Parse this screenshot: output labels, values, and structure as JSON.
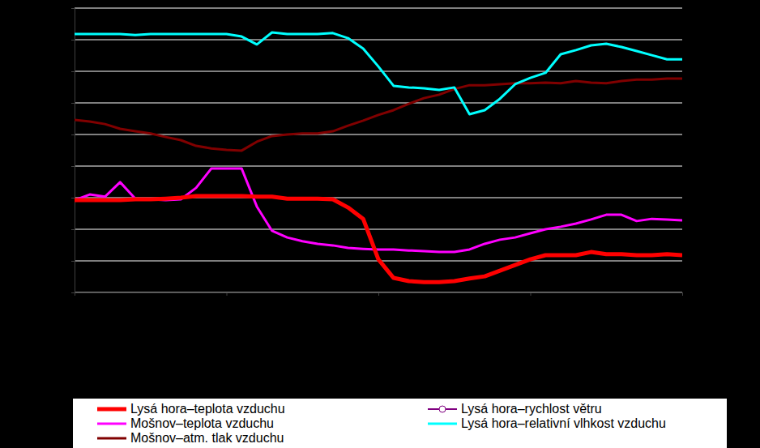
{
  "chart_data": {
    "type": "line",
    "x": [
      0,
      1,
      2,
      3,
      4,
      5,
      6,
      7,
      8,
      9,
      10,
      11,
      12,
      13,
      14,
      15,
      16,
      17,
      18,
      19,
      20,
      21,
      22,
      23,
      24,
      25,
      26,
      27,
      28,
      29,
      30,
      31,
      32,
      33,
      34,
      35,
      36,
      37,
      38,
      39,
      40
    ],
    "xlim": [
      0,
      40
    ],
    "xticks": [
      0,
      10,
      20,
      30,
      40
    ],
    "ylim": [
      0,
      9
    ],
    "yticks": [
      0,
      1,
      2,
      3,
      4,
      5,
      6,
      7,
      8,
      9
    ],
    "grid": true,
    "tick_labels": false,
    "legend": "bottom",
    "series": [
      {
        "name": "Lysá hora–teplota vzduchu",
        "color": "#ff0000",
        "values": [
          2.92,
          2.92,
          2.92,
          2.92,
          2.95,
          2.95,
          2.97,
          3.0,
          3.05,
          3.05,
          3.05,
          3.05,
          3.03,
          3.03,
          2.97,
          2.97,
          2.97,
          2.95,
          2.69,
          2.33,
          1.05,
          0.46,
          0.36,
          0.33,
          0.33,
          0.36,
          0.44,
          0.51,
          0.69,
          0.87,
          1.05,
          1.18,
          1.18,
          1.18,
          1.28,
          1.21,
          1.21,
          1.18,
          1.18,
          1.21,
          1.18
        ]
      },
      {
        "name": "Lysá hora–rychlost větru",
        "color": "#800080",
        "marker": "circle",
        "values": [
          null,
          null,
          null,
          null,
          null,
          null,
          null,
          null,
          null,
          null,
          null,
          null,
          null,
          null,
          null,
          null,
          null,
          null,
          null,
          null,
          null,
          null,
          null,
          null,
          null,
          null,
          null,
          null,
          null,
          null,
          null,
          null,
          null,
          null,
          null,
          null,
          null,
          null,
          null,
          null,
          null
        ]
      },
      {
        "name": "Mošnov–teplota vzduchu",
        "color": "#ff00ff",
        "values": [
          2.92,
          3.1,
          3.03,
          3.49,
          2.97,
          2.95,
          2.92,
          2.95,
          3.31,
          3.92,
          3.92,
          3.92,
          2.72,
          1.95,
          1.74,
          1.62,
          1.54,
          1.49,
          1.41,
          1.38,
          1.36,
          1.36,
          1.33,
          1.31,
          1.28,
          1.28,
          1.36,
          1.54,
          1.67,
          1.74,
          1.87,
          2.0,
          2.08,
          2.18,
          2.31,
          2.46,
          2.46,
          2.26,
          2.33,
          2.31,
          2.28
        ]
      },
      {
        "name": "Lysá hora–relativní vlhkost vzduchu",
        "color": "#00ffff",
        "values": [
          8.18,
          8.18,
          8.18,
          8.18,
          8.15,
          8.18,
          8.18,
          8.18,
          8.18,
          8.18,
          8.18,
          8.1,
          7.85,
          8.23,
          8.18,
          8.18,
          8.18,
          8.21,
          8.05,
          7.72,
          7.15,
          6.54,
          6.49,
          6.46,
          6.41,
          6.49,
          5.64,
          5.77,
          6.13,
          6.59,
          6.79,
          6.95,
          7.54,
          7.67,
          7.82,
          7.87,
          7.77,
          7.64,
          7.51,
          7.38,
          7.38
        ]
      },
      {
        "name": "Mošnov–atm. tlak vzduchu",
        "color": "#800000",
        "values": [
          5.46,
          5.41,
          5.33,
          5.18,
          5.1,
          5.03,
          4.92,
          4.82,
          4.64,
          4.56,
          4.51,
          4.49,
          4.77,
          4.95,
          5.0,
          5.03,
          5.03,
          5.1,
          5.28,
          5.44,
          5.62,
          5.77,
          5.97,
          6.15,
          6.26,
          6.44,
          6.56,
          6.56,
          6.59,
          6.62,
          6.62,
          6.64,
          6.62,
          6.69,
          6.64,
          6.62,
          6.69,
          6.74,
          6.74,
          6.77,
          6.77
        ]
      }
    ]
  }
}
